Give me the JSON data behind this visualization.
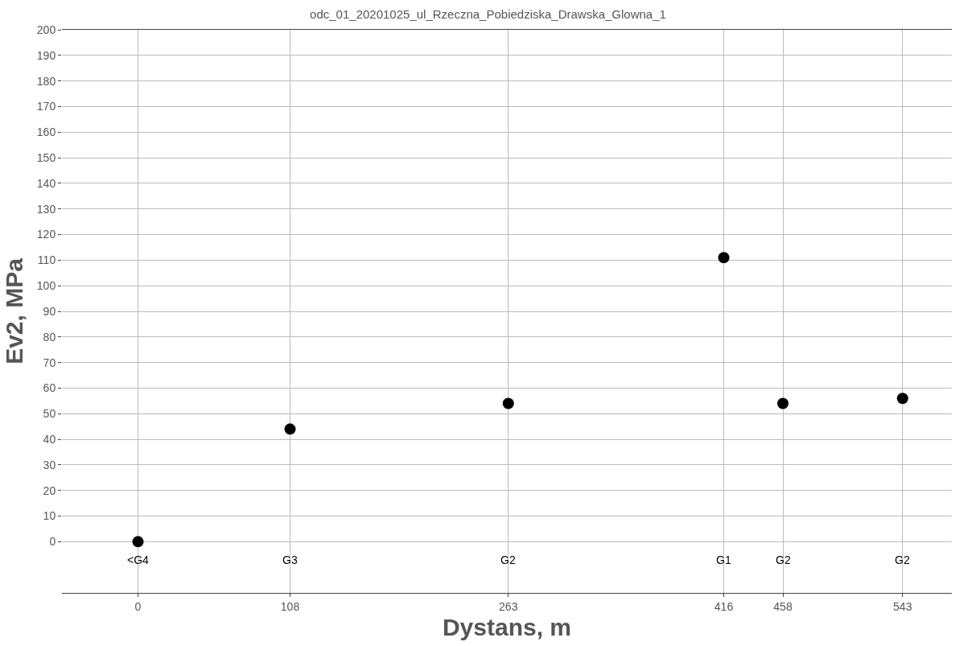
{
  "chart_data": {
    "type": "scatter",
    "title": "odc_01_20201025_ul_Rzeczna_Pobiedziska_Drawska_Glowna_1",
    "xlabel": "Dystans, m",
    "ylabel": "Ev2, MPa",
    "x": [
      0,
      108,
      263,
      416,
      458,
      543
    ],
    "values": [
      0,
      44,
      54,
      111,
      54,
      56
    ],
    "color": "#000000",
    "marker": "circle",
    "xlim": [
      -54,
      578
    ],
    "xticks": [
      0,
      108,
      263,
      416,
      458,
      543
    ],
    "ylim": [
      -20,
      200
    ],
    "yticks": [
      0,
      10,
      20,
      30,
      40,
      50,
      60,
      70,
      80,
      90,
      100,
      110,
      120,
      130,
      140,
      150,
      160,
      170,
      180,
      190,
      200
    ],
    "grid": true,
    "annotations": [
      "<G4",
      "G3",
      "G2",
      "G1",
      "G2",
      "G2"
    ]
  }
}
